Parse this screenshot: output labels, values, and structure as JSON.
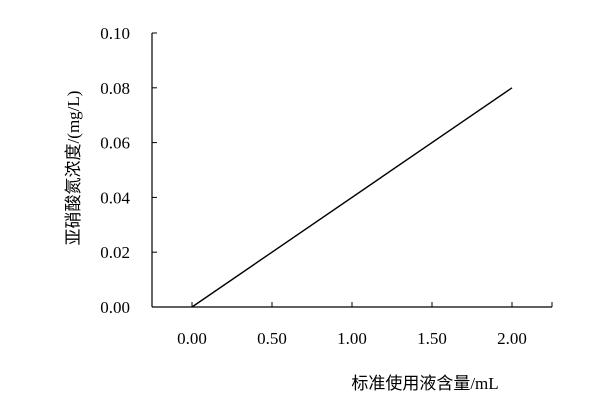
{
  "chart_data": {
    "type": "line",
    "xlabel": "标准使用液含量/mL",
    "ylabel": "亚硝酸氮浓度/(mg/L)",
    "xlim": [
      -0.25,
      2.25
    ],
    "ylim": [
      0,
      0.1
    ],
    "x_ticks": [
      0,
      0.5,
      1.0,
      1.5,
      2.0
    ],
    "x_tick_labels": [
      "0.00",
      "0.50",
      "1.00",
      "1.50",
      "2.00"
    ],
    "y_ticks": [
      0,
      0.02,
      0.04,
      0.06,
      0.08,
      0.1
    ],
    "y_tick_labels": [
      "0.00",
      "0.02",
      "0.04",
      "0.06",
      "0.08",
      "0.10"
    ],
    "grid": false,
    "series": [
      {
        "x": [
          0.0,
          2.0
        ],
        "y": [
          0.0,
          0.08
        ]
      }
    ]
  }
}
